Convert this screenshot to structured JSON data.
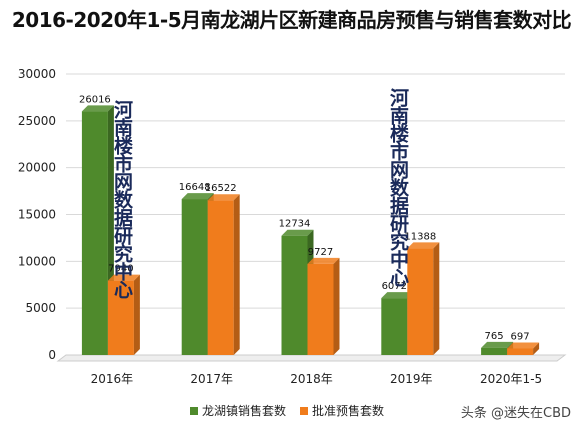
{
  "chart_data": {
    "type": "bar",
    "title": "2016-2020年1-5月南龙湖片区新建商品房预售与销售套数对比",
    "categories": [
      "2016年",
      "2017年",
      "2018年",
      "2019年",
      "2020年1-5"
    ],
    "series": [
      {
        "name": "龙湖镇销售套数",
        "values": [
          26016,
          16648,
          12734,
          6072,
          765
        ],
        "color": "#4f8a2c"
      },
      {
        "name": "批准预售套数",
        "values": [
          7940,
          16522,
          9727,
          11388,
          697
        ],
        "color": "#f07c1c"
      }
    ],
    "ylim": [
      0,
      30000
    ],
    "yticks": [
      0,
      5000,
      10000,
      15000,
      20000,
      25000,
      30000
    ],
    "grid": true,
    "legend": "bottom"
  },
  "watermarks": {
    "left": "河南楼市网数据研究中心",
    "right": "河南楼市网数据研究中心"
  },
  "credit": "头条 @迷失在CBD"
}
